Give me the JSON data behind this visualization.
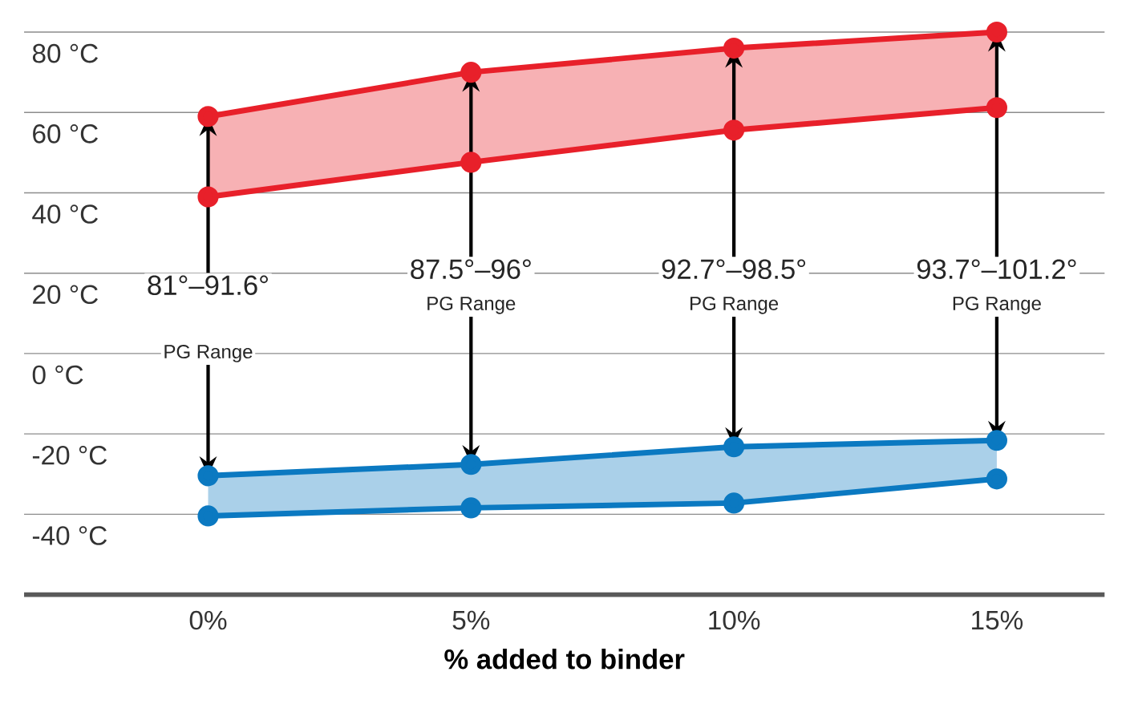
{
  "chart_data": {
    "type": "line",
    "xlabel": "% added to binder",
    "categories": [
      "0%",
      "5%",
      "10%",
      "15%"
    ],
    "series": [
      {
        "color": "#e8202a",
        "values": [
          59,
          70,
          76,
          80
        ],
        "lower": [
          39,
          47.6,
          55.6,
          61.2
        ],
        "upper": [
          59,
          70,
          76,
          80
        ]
      },
      {
        "color": "#e8202a",
        "values": [
          39,
          47.6,
          55.6,
          61.2
        ]
      },
      {
        "color": "#0b79c1",
        "values": [
          -30.4,
          -27.6,
          -23.2,
          -21.6
        ],
        "lower": [
          -40.4,
          -38.4,
          -37.2,
          -31.2
        ],
        "upper": [
          -30.4,
          -27.6,
          -23.2,
          -21.6
        ]
      },
      {
        "color": "#0b79c1",
        "values": [
          -40.4,
          -38.4,
          -37.2,
          -31.2
        ]
      }
    ],
    "ylim": [
      -60,
      80
    ],
    "yticks": [
      {
        "value": 80,
        "label": "80 °C"
      },
      {
        "value": 60,
        "label": "60 °C"
      },
      {
        "value": 40,
        "label": "40 °C"
      },
      {
        "value": 20,
        "label": "20 °C"
      },
      {
        "value": 0,
        "label": "0 °C"
      },
      {
        "value": -20,
        "label": "-20 °C"
      },
      {
        "value": -40,
        "label": "-40 °C"
      }
    ],
    "grid": "y",
    "marker": "circle",
    "annotations": [
      {
        "text": "81°–91.6°",
        "x": "0%",
        "y": 59
      },
      {
        "text": "PG Range",
        "x": "0%",
        "y": -30.4
      },
      {
        "text": "87.5°–96°",
        "x": "5%",
        "y": 70
      },
      {
        "text": "PG Range",
        "x": "5%",
        "y": -27.6
      },
      {
        "text": "92.7°–98.5°",
        "x": "10%",
        "y": 76
      },
      {
        "text": "PG Range",
        "x": "10%",
        "y": -23.2
      },
      {
        "text": "93.7°–101.2°",
        "x": "15%",
        "y": 80
      },
      {
        "text": "PG Range",
        "x": "15%",
        "y": -21.6
      }
    ]
  }
}
